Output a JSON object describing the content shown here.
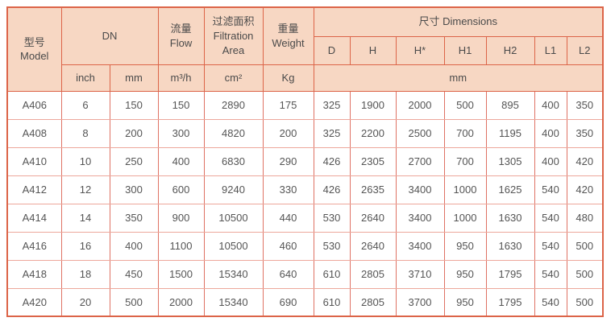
{
  "table": {
    "header": {
      "model_zh": "型号",
      "model_en": "Model",
      "dn": "DN",
      "flow_zh": "流量",
      "flow_en": "Flow",
      "filtration_zh": "过滤面积",
      "filtration_en": "Filtration Area",
      "weight_zh": "重量",
      "weight_en": "Weight",
      "dimensions": "尺寸 Dimensions",
      "dim_cols": [
        "D",
        "H",
        "H*",
        "H1",
        "H2",
        "L1",
        "L2"
      ],
      "units": {
        "inch": "inch",
        "mm": "mm",
        "flow": "m³/h",
        "area": "cm²",
        "weight": "Kg",
        "dims": "mm"
      }
    },
    "rows": [
      {
        "model": "A406",
        "values": [
          "6",
          "150",
          "150",
          "2890",
          "175",
          "325",
          "1900",
          "2000",
          "500",
          "895",
          "400",
          "350"
        ]
      },
      {
        "model": "A408",
        "values": [
          "8",
          "200",
          "300",
          "4820",
          "200",
          "325",
          "2200",
          "2500",
          "700",
          "1195",
          "400",
          "350"
        ]
      },
      {
        "model": "A410",
        "values": [
          "10",
          "250",
          "400",
          "6830",
          "290",
          "426",
          "2305",
          "2700",
          "700",
          "1305",
          "400",
          "420"
        ]
      },
      {
        "model": "A412",
        "values": [
          "12",
          "300",
          "600",
          "9240",
          "330",
          "426",
          "2635",
          "3400",
          "1000",
          "1625",
          "540",
          "420"
        ]
      },
      {
        "model": "A414",
        "values": [
          "14",
          "350",
          "900",
          "10500",
          "440",
          "530",
          "2640",
          "3400",
          "1000",
          "1630",
          "540",
          "480"
        ]
      },
      {
        "model": "A416",
        "values": [
          "16",
          "400",
          "1100",
          "10500",
          "460",
          "530",
          "2640",
          "3400",
          "950",
          "1630",
          "540",
          "500"
        ]
      },
      {
        "model": "A418",
        "values": [
          "18",
          "450",
          "1500",
          "15340",
          "640",
          "610",
          "2805",
          "3710",
          "950",
          "1795",
          "540",
          "500"
        ]
      },
      {
        "model": "A420",
        "values": [
          "20",
          "500",
          "2000",
          "15340",
          "690",
          "610",
          "2805",
          "3700",
          "950",
          "1795",
          "540",
          "500"
        ]
      }
    ],
    "colors": {
      "header_bg": "#f7d7c3",
      "frame_border": "#dc6448",
      "grid_vertical": "#df7264",
      "grid_horizontal": "#eda79b",
      "text": "#555555"
    }
  }
}
